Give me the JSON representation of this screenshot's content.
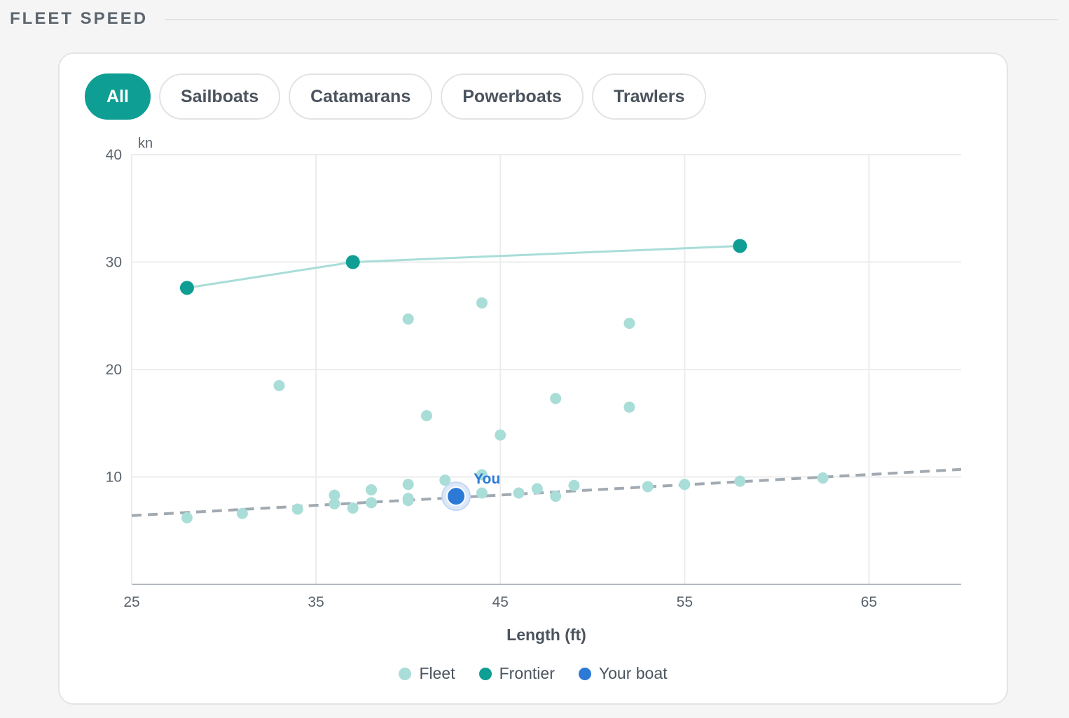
{
  "section": {
    "title": "FLEET SPEED"
  },
  "filters": [
    {
      "label": "All",
      "active": true
    },
    {
      "label": "Sailboats",
      "active": false
    },
    {
      "label": "Catamarans",
      "active": false
    },
    {
      "label": "Powerboats",
      "active": false
    },
    {
      "label": "Trawlers",
      "active": false
    }
  ],
  "colors": {
    "accent": "#0f9e94",
    "fleet": "#a9ddd8",
    "frontier": "#0f9e94",
    "frontier_line": "#a9ddd8",
    "your_boat": "#2c7ad6",
    "trend_line": "#a1aab2",
    "grid": "#ececec"
  },
  "chart_data": {
    "type": "scatter",
    "xlabel": "Length (ft)",
    "ylabel": "kn",
    "xlim": [
      25,
      70
    ],
    "ylim": [
      0,
      40
    ],
    "x_ticks": [
      "25",
      "35",
      "45",
      "55",
      "65"
    ],
    "y_ticks": [
      "10",
      "20",
      "30",
      "40"
    ],
    "grid": true,
    "legend_position": "bottom-center",
    "series": [
      {
        "name": "Fleet",
        "points": [
          [
            28,
            6.2
          ],
          [
            31,
            6.6
          ],
          [
            33,
            18.5
          ],
          [
            34,
            7.0
          ],
          [
            36,
            8.3
          ],
          [
            36,
            7.5
          ],
          [
            37,
            7.1
          ],
          [
            38,
            8.8
          ],
          [
            38,
            7.6
          ],
          [
            40,
            9.3
          ],
          [
            40,
            8.0
          ],
          [
            40,
            7.8
          ],
          [
            40,
            24.7
          ],
          [
            41,
            15.7
          ],
          [
            42,
            9.7
          ],
          [
            44,
            26.2
          ],
          [
            44,
            10.2
          ],
          [
            44,
            8.5
          ],
          [
            45,
            13.9
          ],
          [
            46,
            8.5
          ],
          [
            47,
            8.9
          ],
          [
            48,
            17.3
          ],
          [
            48,
            8.2
          ],
          [
            49,
            9.2
          ],
          [
            52,
            24.3
          ],
          [
            52,
            16.5
          ],
          [
            53,
            9.1
          ],
          [
            55,
            9.3
          ],
          [
            58,
            9.6
          ],
          [
            62.5,
            9.9
          ]
        ]
      },
      {
        "name": "Frontier",
        "points": [
          [
            28,
            27.6
          ],
          [
            37,
            30.0
          ],
          [
            58,
            31.5
          ]
        ]
      },
      {
        "name": "Your boat",
        "points": [
          [
            42.6,
            8.2
          ]
        ],
        "label": "You"
      }
    ],
    "trend_line": [
      [
        25,
        6.4
      ],
      [
        70,
        10.7
      ]
    ]
  }
}
